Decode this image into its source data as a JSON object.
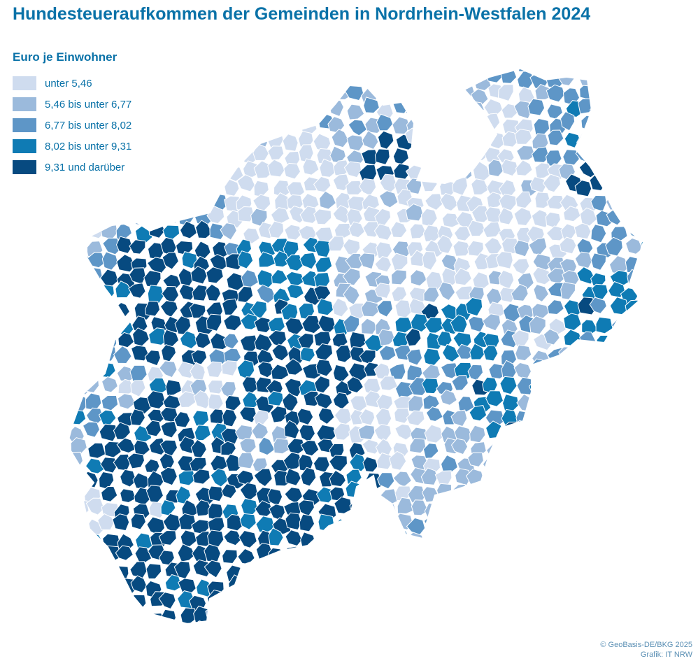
{
  "title": "Hundesteueraufkommen der Gemeinden in Nordrhein-Westfalen 2024",
  "legend": {
    "title": "Euro je Einwohner",
    "classes": [
      {
        "label": "unter 5,46",
        "color": "#cfdcef"
      },
      {
        "label": "5,46 bis unter 6,77",
        "color": "#9bbadc"
      },
      {
        "label": "6,77 bis unter 8,02",
        "color": "#5e96c7"
      },
      {
        "label": "8,02 bis unter 9,31",
        "color": "#0f7bb4"
      },
      {
        "label": "9,31 und darüber",
        "color": "#074a80"
      }
    ]
  },
  "credits": {
    "source": "© GeoBasis-DE/BKG 2025",
    "graphic": "Grafik: IT NRW"
  },
  "map": {
    "region": "Nordrhein-Westfalen",
    "border_color": "#ffffff"
  }
}
